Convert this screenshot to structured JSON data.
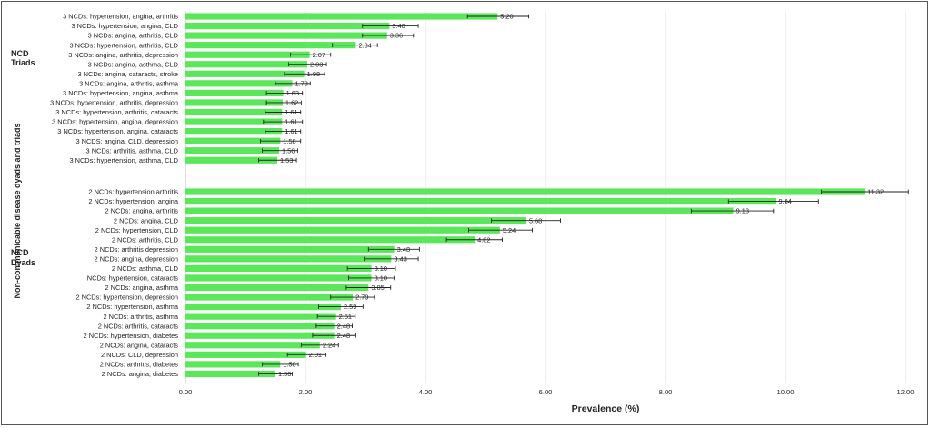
{
  "chart_data": {
    "type": "bar",
    "orientation": "horizontal",
    "xlabel": "Prevalence (%)",
    "ylabel": "Non-communicable disease dyads and triads",
    "xlim": [
      0,
      12
    ],
    "xticks": [
      0,
      2,
      4,
      6,
      8,
      10,
      12
    ],
    "xtick_labels": [
      "0.00",
      "2.00",
      "4.00",
      "6.00",
      "8.00",
      "10.00",
      "12.00"
    ],
    "grid": "vertical",
    "bar_color": "#5ae85a",
    "error_color": "#222222",
    "groups": [
      {
        "label_line1": "NCD",
        "label_line2": "Triads",
        "categories": [
          "3 NCDs: hypertension, angina, arthritis",
          "3 NCDs: hypertension, angina, CLD",
          "3 NCDs: angina, arthritis, CLD",
          "3 NCDs: hypertension, arthritis, CLD",
          "3 NCDs: angina, arthritis, depression",
          "3 NCDs: angina, asthma, CLD",
          "3 NCDs: angina, cataracts, stroke",
          "3 NCDs: angina, arthritis, asthma",
          "3 NCDs: hypertension, angina, asthma",
          "3 NCDs: hypertension, arthritis, depression",
          "3 NCDs: hypertension, arthritis, cataracts",
          "3 NCDs: hypertension, angina, depression",
          "3 NCDs: hypertension, angina, cataracts",
          "3 NCDS: angina, CLD, depression",
          "3 NCDs: arthritis, asthma, CLD",
          "3 NCDs: hypertension, asthma, CLD"
        ],
        "values": [
          5.2,
          3.4,
          3.36,
          2.84,
          2.07,
          2.03,
          1.98,
          1.78,
          1.63,
          1.62,
          1.61,
          1.61,
          1.61,
          1.58,
          1.56,
          1.53
        ],
        "value_labels": [
          "5.20",
          "3.40",
          "3.36",
          "2.84",
          "2.07",
          "2.03",
          "1.98",
          "1.78",
          "1.63",
          "1.62",
          "1.61",
          "1.61",
          "1.61",
          "1.58",
          "1.56",
          "1.53"
        ],
        "err_low": [
          4.7,
          2.95,
          2.95,
          2.45,
          1.75,
          1.72,
          1.65,
          1.5,
          1.35,
          1.35,
          1.33,
          1.3,
          1.33,
          1.25,
          1.28,
          1.22
        ],
        "err_high": [
          5.72,
          3.88,
          3.8,
          3.2,
          2.42,
          2.35,
          2.32,
          2.08,
          1.95,
          1.93,
          1.92,
          1.95,
          1.92,
          1.92,
          1.87,
          1.85
        ]
      },
      {
        "label_line1": "NCD",
        "label_line2": "Dyads",
        "categories": [
          "2 NCDs: hypertension arthritis",
          "2 NCDs: hypertension, angina",
          "2 NCDs: angina, arthritis",
          "2 NCDs: angina, CLD",
          "2 NCDs: hypertension, CLD",
          "2 NCDs: arthritis, CLD",
          "2 NCDs: arthritis depression",
          "2 NCDs: angina, depression",
          "2 NCDs: asthma, CLD",
          "NCDs: hypertension, cataracts",
          "2 NCDs: angina, asthma",
          "2 NCDs: hypertension, depression",
          "2 NCDs: hypertension, asthma",
          "2 NCDs: arthritis, asthma",
          "2 NCDs: arthritis, cataracts",
          "2 NCDs: hypertension, diabetes",
          "2 NCDs: angina, cataracts",
          "2 NCDs: CLD, depression",
          "2 NCDs: arthritis, diabetes",
          "2 NCDs: angina, diabetes"
        ],
        "values": [
          11.32,
          9.84,
          9.13,
          5.68,
          5.24,
          4.82,
          3.48,
          3.43,
          3.1,
          3.1,
          3.05,
          2.79,
          2.59,
          2.51,
          2.48,
          2.48,
          2.24,
          2.01,
          1.58,
          1.5
        ],
        "value_labels": [
          "11.32",
          "9.84",
          "9.13",
          "5.68",
          "5.24",
          "4.82",
          "3.48",
          "3.43",
          "3.10",
          "3.10",
          "3.05",
          "2.79",
          "2.59",
          "2.51",
          "2.48",
          "2.48",
          "2.24",
          "2.01",
          "1.58",
          "1.50"
        ],
        "err_low": [
          10.6,
          9.05,
          8.43,
          5.1,
          4.72,
          4.35,
          3.05,
          2.98,
          2.7,
          2.72,
          2.68,
          2.42,
          2.22,
          2.2,
          2.18,
          2.12,
          1.93,
          1.7,
          1.28,
          1.22
        ],
        "err_high": [
          12.05,
          10.55,
          9.8,
          6.25,
          5.78,
          5.28,
          3.9,
          3.88,
          3.5,
          3.48,
          3.42,
          3.15,
          2.96,
          2.83,
          2.78,
          2.84,
          2.55,
          2.34,
          1.88,
          1.78
        ]
      }
    ]
  }
}
